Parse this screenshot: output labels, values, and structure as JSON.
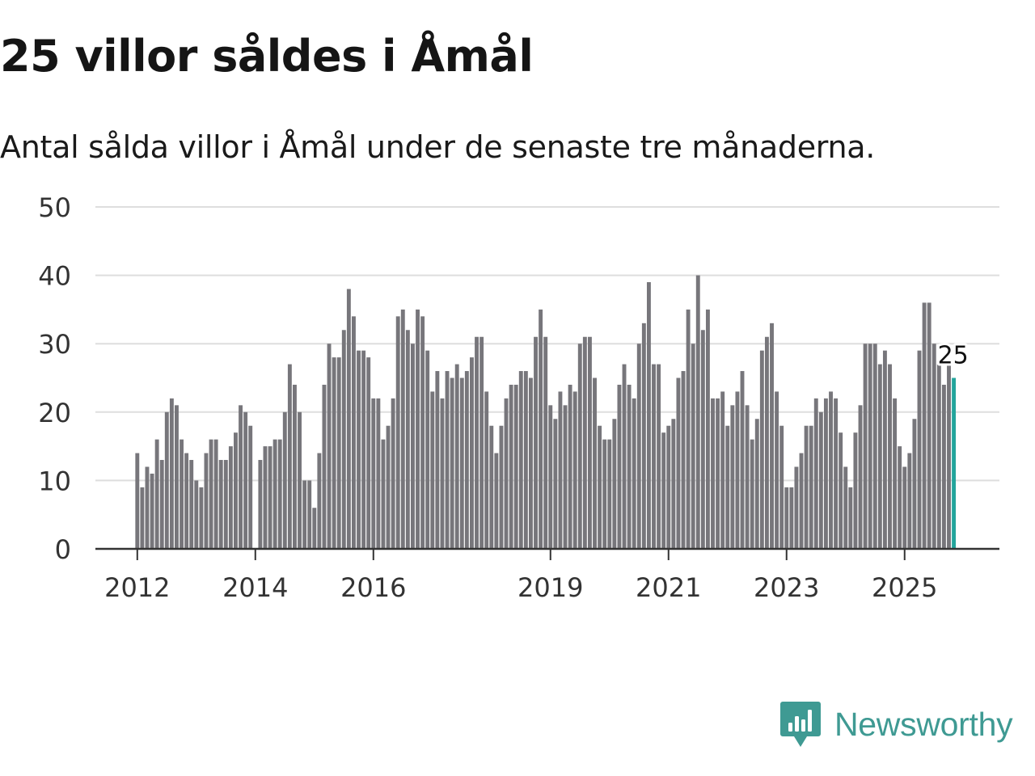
{
  "title": "25 villor såldes i Åmål",
  "subtitle": "Antal sålda villor i Åmål under de senaste tre månaderna.",
  "brand": {
    "name": "Newsworthy",
    "color": "#3f9a93"
  },
  "colors": {
    "bar": "#77767b",
    "highlight": "#23a59c",
    "grid": "#dedede",
    "axis": "#333333"
  },
  "chart_data": {
    "type": "bar",
    "title": "25 villor såldes i Åmål",
    "xlabel": "",
    "ylabel": "",
    "ylim": [
      0,
      50
    ],
    "yticks": [
      0,
      10,
      20,
      30,
      40,
      50
    ],
    "xticks": [
      "2012",
      "2014",
      "2016",
      "2019",
      "2021",
      "2023",
      "2025"
    ],
    "x_start": "2012-01",
    "x_end": "2025-11",
    "grid": true,
    "highlight_label": "25",
    "series": [
      {
        "name": "Antal sålda villor (rullande tre månader)",
        "values": [
          14,
          9,
          12,
          11,
          16,
          13,
          20,
          22,
          21,
          16,
          14,
          13,
          10,
          9,
          14,
          16,
          16,
          13,
          13,
          15,
          17,
          21,
          20,
          18,
          0,
          13,
          15,
          15,
          16,
          16,
          20,
          27,
          24,
          20,
          10,
          10,
          6,
          14,
          24,
          30,
          28,
          28,
          32,
          38,
          34,
          29,
          29,
          28,
          22,
          22,
          16,
          18,
          22,
          34,
          35,
          32,
          30,
          35,
          34,
          29,
          23,
          26,
          22,
          26,
          25,
          27,
          25,
          26,
          28,
          31,
          31,
          23,
          18,
          14,
          18,
          22,
          24,
          24,
          26,
          26,
          25,
          31,
          35,
          31,
          21,
          19,
          23,
          21,
          24,
          23,
          30,
          31,
          31,
          25,
          18,
          16,
          16,
          19,
          24,
          27,
          24,
          22,
          30,
          33,
          39,
          27,
          27,
          17,
          18,
          19,
          25,
          26,
          35,
          30,
          40,
          32,
          35,
          22,
          22,
          23,
          18,
          21,
          23,
          26,
          21,
          16,
          19,
          29,
          31,
          33,
          23,
          18,
          9,
          9,
          12,
          14,
          18,
          18,
          22,
          20,
          22,
          23,
          22,
          17,
          12,
          9,
          17,
          21,
          30,
          30,
          30,
          27,
          29,
          27,
          22,
          15,
          12,
          14,
          19,
          29,
          36,
          36,
          30,
          27,
          24,
          27,
          25
        ]
      }
    ]
  }
}
